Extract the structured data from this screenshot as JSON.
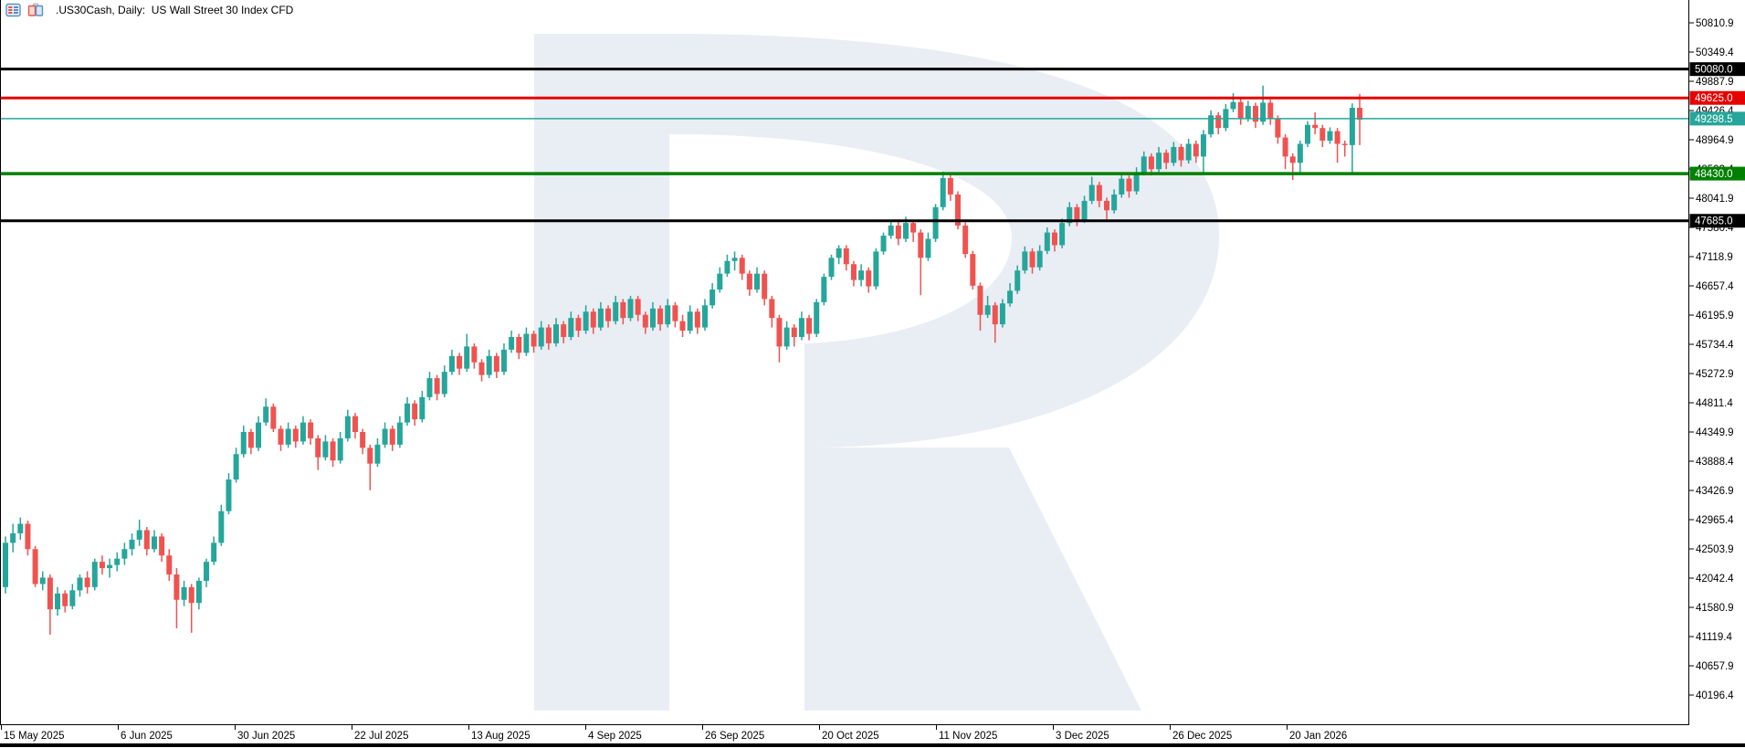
{
  "header": {
    "title": ".US30Cash, Daily:  US Wall Street 30 Index CFD",
    "icons": [
      "chart-list-icon",
      "chart-windows-icon"
    ]
  },
  "watermark": {
    "name": "broker-R-logo",
    "color": "#e9edf4"
  },
  "chart_data": {
    "type": "candlestick",
    "symbol": ".US30Cash",
    "timeframe": "Daily",
    "description": "US Wall Street 30 Index CFD",
    "bull_color": "#26a69a",
    "bear_color": "#ef5350",
    "background": "#ffffff",
    "grid": "off",
    "y_axis": {
      "side": "right",
      "step": "461.5",
      "labels": [
        "50810.9",
        "50349.4",
        "49887.9",
        "49426.4",
        "48964.9",
        "48503.4",
        "48041.9",
        "47580.4",
        "47118.9",
        "46657.4",
        "46195.9",
        "45734.4",
        "45272.9",
        "44811.4",
        "44349.9",
        "43888.4",
        "43426.9",
        "42965.4",
        "42503.9",
        "42042.4",
        "41580.9",
        "41119.4",
        "40657.9",
        "40196.4"
      ]
    },
    "x_axis": {
      "side": "bottom",
      "labels": [
        "15 May 2025",
        "6 Jun 2025",
        "30 Jun 2025",
        "22 Jul 2025",
        "13 Aug 2025",
        "4 Sep 2025",
        "26 Sep 2025",
        "20 Oct 2025",
        "11 Nov 2025",
        "3 Dec 2025",
        "26 Dec 2025",
        "20 Jan 2026"
      ]
    },
    "levels": [
      {
        "label": "50080.0",
        "price": 50080.0,
        "color": "#000000",
        "width": 3,
        "type": "resistance-line"
      },
      {
        "label": "49625.0",
        "price": 49625.0,
        "color": "#e60000",
        "width": 3,
        "type": "resistance-line"
      },
      {
        "label": "49298.5",
        "price": 49298.5,
        "color": "#26a69a",
        "width": 1.5,
        "type": "current-price-line"
      },
      {
        "label": "48430.0",
        "price": 48430.0,
        "color": "#008000",
        "width": 3.5,
        "type": "support-line"
      },
      {
        "label": "47685.0",
        "price": 47685.0,
        "color": "#000000",
        "width": 3,
        "type": "support-line"
      }
    ],
    "candles": [
      [
        41900,
        42700,
        41800,
        42600
      ],
      [
        42600,
        42900,
        42450,
        42750
      ],
      [
        42750,
        43000,
        42650,
        42900
      ],
      [
        42900,
        42950,
        42400,
        42500
      ],
      [
        42500,
        42550,
        41900,
        41950
      ],
      [
        41950,
        42150,
        41850,
        42050
      ],
      [
        42050,
        42100,
        41150,
        41550
      ],
      [
        41550,
        41900,
        41450,
        41800
      ],
      [
        41800,
        41850,
        41500,
        41600
      ],
      [
        41600,
        41950,
        41550,
        41850
      ],
      [
        41850,
        42100,
        41750,
        42050
      ],
      [
        42050,
        42150,
        41800,
        41900
      ],
      [
        41900,
        42350,
        41850,
        42300
      ],
      [
        42300,
        42400,
        42100,
        42200
      ],
      [
        42200,
        42350,
        42050,
        42250
      ],
      [
        42250,
        42450,
        42150,
        42350
      ],
      [
        42350,
        42600,
        42250,
        42500
      ],
      [
        42500,
        42750,
        42400,
        42650
      ],
      [
        42650,
        42965,
        42550,
        42800
      ],
      [
        42800,
        42850,
        42400,
        42500
      ],
      [
        42500,
        42800,
        42450,
        42700
      ],
      [
        42700,
        42750,
        42300,
        42400
      ],
      [
        42400,
        42500,
        42000,
        42100
      ],
      [
        42100,
        42200,
        41250,
        41700
      ],
      [
        41700,
        42000,
        41600,
        41900
      ],
      [
        41900,
        41950,
        41180,
        41650
      ],
      [
        41650,
        42050,
        41550,
        42000
      ],
      [
        42000,
        42350,
        41900,
        42300
      ],
      [
        42300,
        42700,
        42250,
        42600
      ],
      [
        42600,
        43200,
        42550,
        43100
      ],
      [
        43100,
        43700,
        43050,
        43600
      ],
      [
        43600,
        44100,
        43550,
        44000
      ],
      [
        44000,
        44450,
        43950,
        44350
      ],
      [
        44350,
        44400,
        44000,
        44100
      ],
      [
        44100,
        44600,
        44050,
        44500
      ],
      [
        44500,
        44880,
        44450,
        44750
      ],
      [
        44750,
        44800,
        44350,
        44400
      ],
      [
        44400,
        44450,
        44050,
        44150
      ],
      [
        44150,
        44500,
        44100,
        44400
      ],
      [
        44400,
        44450,
        44100,
        44200
      ],
      [
        44200,
        44600,
        44150,
        44500
      ],
      [
        44500,
        44550,
        44150,
        44250
      ],
      [
        44250,
        44300,
        43750,
        43950
      ],
      [
        43950,
        44300,
        43900,
        44200
      ],
      [
        44200,
        44250,
        43800,
        43900
      ],
      [
        43900,
        44350,
        43850,
        44250
      ],
      [
        44250,
        44700,
        44200,
        44600
      ],
      [
        44600,
        44650,
        44250,
        44350
      ],
      [
        44350,
        44400,
        44000,
        44100
      ],
      [
        44100,
        44150,
        43430,
        43850
      ],
      [
        43850,
        44250,
        43800,
        44150
      ],
      [
        44150,
        44500,
        44100,
        44400
      ],
      [
        44400,
        44450,
        44050,
        44150
      ],
      [
        44150,
        44600,
        44100,
        44500
      ],
      [
        44500,
        44900,
        44450,
        44800
      ],
      [
        44800,
        44850,
        44450,
        44550
      ],
      [
        44550,
        45000,
        44500,
        44900
      ],
      [
        44900,
        45300,
        44850,
        45200
      ],
      [
        45200,
        45250,
        44850,
        44950
      ],
      [
        44950,
        45400,
        44900,
        45300
      ],
      [
        45300,
        45650,
        45250,
        45550
      ],
      [
        45550,
        45600,
        45250,
        45350
      ],
      [
        45350,
        45900,
        45300,
        45700
      ],
      [
        45700,
        45750,
        45350,
        45450
      ],
      [
        45450,
        45500,
        45150,
        45250
      ],
      [
        45250,
        45650,
        45200,
        45550
      ],
      [
        45550,
        45600,
        45200,
        45300
      ],
      [
        45300,
        45750,
        45250,
        45650
      ],
      [
        45650,
        45950,
        45600,
        45850
      ],
      [
        45850,
        45900,
        45500,
        45600
      ],
      [
        45600,
        46000,
        45550,
        45900
      ],
      [
        45900,
        45950,
        45600,
        45700
      ],
      [
        45700,
        46100,
        45650,
        46000
      ],
      [
        46000,
        46050,
        45650,
        45750
      ],
      [
        45750,
        46150,
        45700,
        46050
      ],
      [
        46050,
        46100,
        45750,
        45850
      ],
      [
        45850,
        46250,
        45800,
        46150
      ],
      [
        46150,
        46200,
        45850,
        45950
      ],
      [
        45950,
        46350,
        45900,
        46250
      ],
      [
        46250,
        46300,
        45900,
        46000
      ],
      [
        46000,
        46400,
        45950,
        46300
      ],
      [
        46300,
        46350,
        46000,
        46100
      ],
      [
        46100,
        46500,
        46050,
        46400
      ],
      [
        46400,
        46450,
        46050,
        46150
      ],
      [
        46150,
        46500,
        46100,
        46450
      ],
      [
        46450,
        46500,
        46100,
        46200
      ],
      [
        46200,
        46250,
        45900,
        46000
      ],
      [
        46000,
        46400,
        45950,
        46300
      ],
      [
        46300,
        46350,
        45950,
        46050
      ],
      [
        46050,
        46450,
        46000,
        46350
      ],
      [
        46350,
        46400,
        46000,
        46100
      ],
      [
        46100,
        46200,
        45850,
        45950
      ],
      [
        45950,
        46350,
        45900,
        46250
      ],
      [
        46250,
        46300,
        45900,
        46000
      ],
      [
        46000,
        46450,
        45950,
        46350
      ],
      [
        46350,
        46700,
        46300,
        46600
      ],
      [
        46600,
        46950,
        46550,
        46850
      ],
      [
        46850,
        47150,
        46800,
        47050
      ],
      [
        47050,
        47200,
        46900,
        47100
      ],
      [
        47100,
        47150,
        46750,
        46850
      ],
      [
        46850,
        46900,
        46500,
        46600
      ],
      [
        46600,
        46950,
        46550,
        46850
      ],
      [
        46850,
        46900,
        46350,
        46450
      ],
      [
        46450,
        46500,
        46000,
        46150
      ],
      [
        46150,
        46200,
        45450,
        45700
      ],
      [
        45700,
        46100,
        45650,
        46000
      ],
      [
        46000,
        46050,
        45700,
        45850
      ],
      [
        45850,
        46250,
        45800,
        46150
      ],
      [
        46150,
        46200,
        45800,
        45900
      ],
      [
        45900,
        46450,
        45850,
        46400
      ],
      [
        46400,
        46850,
        46350,
        46800
      ],
      [
        46800,
        47150,
        46750,
        47100
      ],
      [
        47100,
        47300,
        47000,
        47250
      ],
      [
        47250,
        47300,
        46900,
        47000
      ],
      [
        47000,
        47050,
        46650,
        46750
      ],
      [
        46750,
        47000,
        46650,
        46900
      ],
      [
        46900,
        46950,
        46550,
        46650
      ],
      [
        46650,
        47250,
        46600,
        47200
      ],
      [
        47200,
        47500,
        47150,
        47450
      ],
      [
        47450,
        47700,
        47400,
        47610
      ],
      [
        47610,
        47700,
        47300,
        47400
      ],
      [
        47400,
        47750,
        47350,
        47650
      ],
      [
        47650,
        47700,
        47350,
        47500
      ],
      [
        47500,
        47550,
        46510,
        47100
      ],
      [
        47100,
        47500,
        47050,
        47400
      ],
      [
        47400,
        47950,
        47350,
        47900
      ],
      [
        47900,
        48460,
        47850,
        48360
      ],
      [
        48360,
        48410,
        48000,
        48100
      ],
      [
        48100,
        48150,
        47550,
        47610
      ],
      [
        47610,
        47660,
        47100,
        47160
      ],
      [
        47160,
        47210,
        46600,
        46660
      ],
      [
        46660,
        46710,
        45950,
        46200
      ],
      [
        46200,
        46500,
        46150,
        46350
      ],
      [
        46350,
        46400,
        45760,
        46050
      ],
      [
        46050,
        46450,
        46000,
        46380
      ],
      [
        46380,
        46700,
        46330,
        46580
      ],
      [
        46580,
        46980,
        46530,
        46900
      ],
      [
        46900,
        47280,
        46850,
        47200
      ],
      [
        47200,
        47250,
        46850,
        46950
      ],
      [
        46950,
        47300,
        46900,
        47210
      ],
      [
        47210,
        47580,
        47160,
        47500
      ],
      [
        47500,
        47550,
        47200,
        47300
      ],
      [
        47300,
        47720,
        47250,
        47650
      ],
      [
        47650,
        47980,
        47600,
        47900
      ],
      [
        47900,
        47950,
        47600,
        47700
      ],
      [
        47700,
        48080,
        47650,
        48000
      ],
      [
        48000,
        48380,
        47950,
        48250
      ],
      [
        48250,
        48300,
        47900,
        48000
      ],
      [
        48000,
        48050,
        47700,
        47850
      ],
      [
        47850,
        48180,
        47800,
        48100
      ],
      [
        48100,
        48430,
        48050,
        48350
      ],
      [
        48350,
        48400,
        48050,
        48150
      ],
      [
        48150,
        48530,
        48100,
        48450
      ],
      [
        48450,
        48780,
        48400,
        48700
      ],
      [
        48700,
        48750,
        48400,
        48500
      ],
      [
        48500,
        48850,
        48450,
        48760
      ],
      [
        48760,
        48810,
        48500,
        48600
      ],
      [
        48600,
        48930,
        48550,
        48850
      ],
      [
        48850,
        48900,
        48540,
        48640
      ],
      [
        48640,
        48980,
        48590,
        48900
      ],
      [
        48900,
        48950,
        48600,
        48700
      ],
      [
        48700,
        49120,
        48430,
        49050
      ],
      [
        49050,
        49430,
        49000,
        49350
      ],
      [
        49350,
        49400,
        49050,
        49150
      ],
      [
        49150,
        49530,
        49100,
        49450
      ],
      [
        49450,
        49700,
        49400,
        49560
      ],
      [
        49560,
        49610,
        49200,
        49300
      ],
      [
        49300,
        49580,
        49250,
        49500
      ],
      [
        49500,
        49550,
        49150,
        49250
      ],
      [
        49250,
        49820,
        49200,
        49550
      ],
      [
        49550,
        49600,
        49200,
        49300
      ],
      [
        49300,
        49350,
        48900,
        49000
      ],
      [
        49000,
        49050,
        48500,
        48700
      ],
      [
        48700,
        48750,
        48330,
        48600
      ],
      [
        48600,
        48950,
        48430,
        48900
      ],
      [
        48900,
        49260,
        48850,
        49200
      ],
      [
        49200,
        49400,
        49050,
        49150
      ],
      [
        49150,
        49200,
        48850,
        48950
      ],
      [
        48950,
        49160,
        48900,
        49100
      ],
      [
        49100,
        49150,
        48600,
        48900
      ],
      [
        48900,
        48950,
        48700,
        48880
      ],
      [
        48880,
        49540,
        48430,
        49470
      ],
      [
        49470,
        49690,
        48880,
        49280
      ]
    ]
  }
}
